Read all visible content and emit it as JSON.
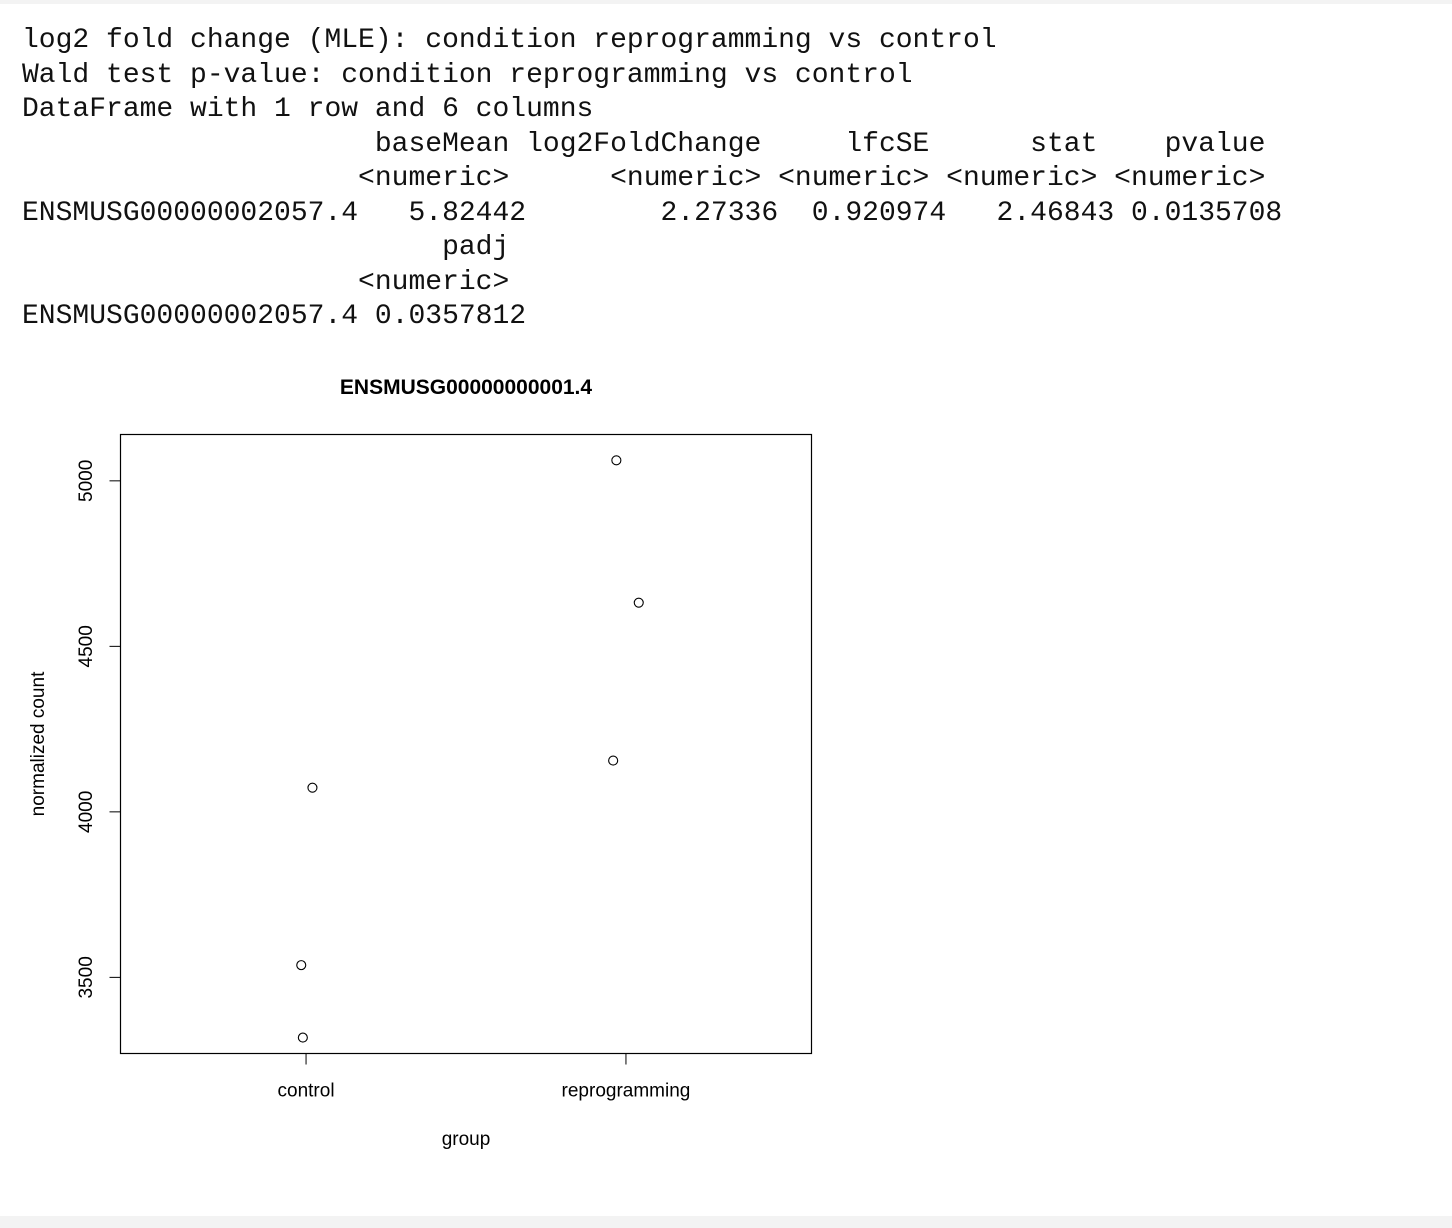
{
  "console": {
    "lines": [
      "log2 fold change (MLE): condition reprogramming vs control",
      "Wald test p-value: condition reprogramming vs control",
      "DataFrame with 1 row and 6 columns",
      "                     baseMean log2FoldChange     lfcSE      stat    pvalue",
      "                    <numeric>      <numeric> <numeric> <numeric> <numeric>",
      "ENSMUSG00000002057.4   5.82442        2.27336  0.920974   2.46843 0.0135708",
      "                         padj",
      "                    <numeric>",
      "ENSMUSG00000002057.4 0.0357812"
    ]
  },
  "chart_data": {
    "type": "scatter",
    "title": "ENSMUSG00000000001.4",
    "xlabel": "group",
    "ylabel": "normalized count",
    "categories": [
      "control",
      "reprogramming"
    ],
    "x_tick_labels": [
      "control",
      "reprogramming"
    ],
    "y_ticks": [
      3500,
      4000,
      4500,
      5000
    ],
    "y_tick_labels": [
      "3500",
      "4000",
      "4500",
      "5000"
    ],
    "ylim": [
      3270,
      5140
    ],
    "xlim": [
      0.42,
      2.58
    ],
    "grid": false,
    "series": [
      {
        "points": [
          {
            "group": "control",
            "x": 0.985,
            "y": 3537
          },
          {
            "group": "control",
            "x": 0.99,
            "y": 3318
          },
          {
            "group": "control",
            "x": 1.02,
            "y": 4073
          },
          {
            "group": "reprogramming",
            "x": 1.97,
            "y": 5062
          },
          {
            "group": "reprogramming",
            "x": 2.04,
            "y": 4632
          },
          {
            "group": "reprogramming",
            "x": 1.96,
            "y": 4155
          }
        ]
      }
    ]
  }
}
